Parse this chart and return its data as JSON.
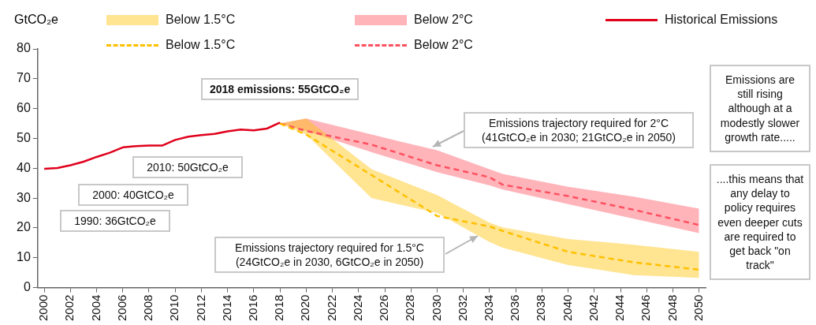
{
  "chart_data": {
    "type": "line",
    "ylabel": "GtCO₂e",
    "xlim": [
      1999.5,
      2050.5
    ],
    "xticks": [
      2000,
      2002,
      2004,
      2006,
      2008,
      2010,
      2012,
      2014,
      2016,
      2018,
      2020,
      2022,
      2024,
      2026,
      2028,
      2030,
      2032,
      2034,
      2036,
      2038,
      2040,
      2042,
      2044,
      2046,
      2048,
      2050
    ],
    "ylim": [
      0,
      80
    ],
    "yticks": [
      0,
      10,
      20,
      30,
      40,
      50,
      60,
      70,
      80
    ],
    "grid": false,
    "legend": "top",
    "series": [
      {
        "type": "line",
        "name": "Historical Emissions",
        "color": "#e0001b",
        "line_style": "solid",
        "x": [
          2000,
          2001,
          2002,
          2003,
          2004,
          2005,
          2006,
          2007,
          2008,
          2009,
          2010,
          2011,
          2012,
          2013,
          2014,
          2015,
          2016,
          2017,
          2018
        ],
        "values": [
          39.8,
          40.1,
          41,
          42.2,
          43.8,
          45.2,
          47,
          47.4,
          47.6,
          47.6,
          49.5,
          50.6,
          51.1,
          51.5,
          52.4,
          53,
          52.7,
          53.3,
          55.3
        ]
      },
      {
        "type": "line",
        "name": "Below 1.5°C",
        "color": "#ffc000",
        "line_style": "dashed",
        "x": [
          2018,
          2020,
          2025,
          2030,
          2034,
          2035,
          2040,
          2045,
          2050
        ],
        "values": [
          55,
          51.3,
          37.7,
          24,
          20.5,
          19,
          12,
          8.5,
          6
        ],
        "lower": [
          55,
          51.3,
          30,
          25,
          15.3,
          13.4,
          7.6,
          4.2,
          3.3
        ],
        "upper": [
          55,
          56.7,
          39.7,
          31,
          21.8,
          20.2,
          16.3,
          14.4,
          12
        ]
      },
      {
        "type": "line",
        "name": "Below 2°C",
        "color": "#ff5060",
        "line_style": "dashed",
        "x": [
          2018,
          2020,
          2025,
          2030,
          2034,
          2035,
          2040,
          2045,
          2050
        ],
        "values": [
          55,
          52.5,
          47.9,
          41,
          37,
          34.5,
          30.7,
          26.1,
          21
        ],
        "lower": [
          55,
          52.5,
          45.4,
          38.7,
          34.3,
          32.9,
          28,
          23.1,
          18.3
        ],
        "upper": [
          55,
          56.7,
          51.3,
          46,
          39.7,
          38.1,
          33.8,
          30.5,
          26.5
        ]
      }
    ],
    "annotations": [
      {
        "text": "2018 emissions: 55GtCO₂e",
        "x": 2018,
        "y": 55
      },
      "2010: 50GtCO₂e",
      "2000: 40GtCO₂e",
      "1990: 36GtCO₂e",
      "Emissions trajectory required for 1.5°C (24GtCO₂e in 2030, 6GtCO₂e in 2050)",
      "Emissions trajectory required for 2°C (41GtCO₂e in 2030; 21GtCO₂e in 2050)",
      "Emissions are still rising although at a modestly slower growth rate.....",
      "....this means that any delay to policy requires even deeper cuts are required to get back \"on track\""
    ]
  }
}
